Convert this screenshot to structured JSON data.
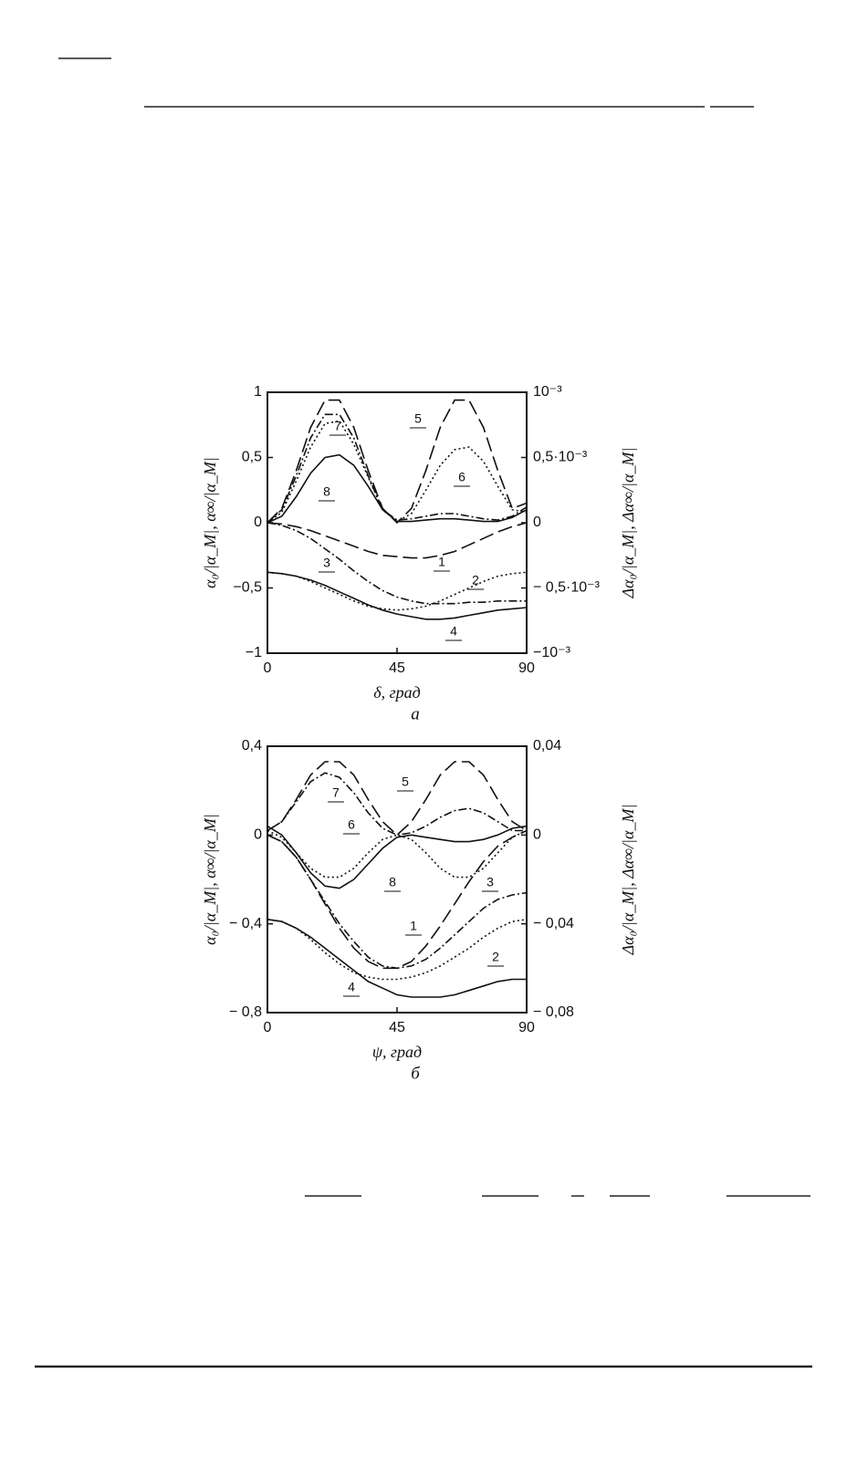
{
  "chart_data": [
    {
      "type": "line",
      "xlabel": "δ, град",
      "caption": "а",
      "ylabel": "α₀/|α_M|, α∞/|α_M|",
      "y2label": "Δα₀/|α_M|, Δα∞/|α_M|",
      "xlim": [
        0,
        90
      ],
      "xticks": [
        0,
        45,
        90
      ],
      "ylim": [
        -1,
        1
      ],
      "yticks": [
        {
          "value": -1,
          "label": "−1"
        },
        {
          "value": -0.5,
          "label": "−0,5"
        },
        0,
        {
          "value": 0.5,
          "label": "0,5"
        },
        1
      ],
      "y2lim": [
        -0.001,
        0.001
      ],
      "y2ticks": [
        {
          "value": -0.001,
          "label": "−10⁻³"
        },
        {
          "value": -0.0005,
          "label": "− 0,5·10⁻³"
        },
        0,
        {
          "value": 0.0005,
          "label": "0,5·10⁻³"
        },
        {
          "value": 0.001,
          "label": "10⁻³"
        }
      ],
      "x": [
        0,
        5,
        10,
        15,
        20,
        25,
        30,
        35,
        40,
        45,
        50,
        55,
        60,
        65,
        70,
        75,
        80,
        85,
        90
      ],
      "series": [
        {
          "name": "1",
          "color": "#111",
          "dash": "long-dash",
          "values": [
            0,
            -0.01,
            -0.03,
            -0.06,
            -0.1,
            -0.14,
            -0.18,
            -0.22,
            -0.25,
            -0.26,
            -0.27,
            -0.27,
            -0.25,
            -0.22,
            -0.17,
            -0.12,
            -0.07,
            -0.03,
            0
          ]
        },
        {
          "name": "2",
          "color": "#111",
          "dash": "dotted",
          "values": [
            -0.38,
            -0.39,
            -0.41,
            -0.45,
            -0.5,
            -0.55,
            -0.6,
            -0.64,
            -0.66,
            -0.67,
            -0.66,
            -0.64,
            -0.6,
            -0.55,
            -0.5,
            -0.45,
            -0.41,
            -0.39,
            -0.38
          ]
        },
        {
          "name": "3",
          "color": "#111",
          "dash": "dash-dot",
          "values": [
            0,
            -0.02,
            -0.06,
            -0.12,
            -0.2,
            -0.28,
            -0.37,
            -0.45,
            -0.52,
            -0.57,
            -0.6,
            -0.62,
            -0.62,
            -0.62,
            -0.61,
            -0.61,
            -0.6,
            -0.6,
            -0.6
          ]
        },
        {
          "name": "4",
          "color": "#111",
          "dash": "solid",
          "values": [
            -0.38,
            -0.39,
            -0.41,
            -0.44,
            -0.48,
            -0.53,
            -0.58,
            -0.63,
            -0.67,
            -0.7,
            -0.72,
            -0.74,
            -0.74,
            -0.73,
            -0.71,
            -0.69,
            -0.67,
            -0.66,
            -0.65
          ]
        },
        {
          "name": "5",
          "color": "#111",
          "dash": "long-dash",
          "values": [
            0,
            0.11,
            0.4,
            0.73,
            0.94,
            0.94,
            0.73,
            0.4,
            0.11,
            0,
            0.11,
            0.4,
            0.73,
            0.94,
            0.94,
            0.73,
            0.4,
            0.11,
            0.15
          ]
        },
        {
          "name": "6",
          "color": "#111",
          "dash": "dotted",
          "values": [
            0,
            0.08,
            0.32,
            0.58,
            0.76,
            0.78,
            0.6,
            0.35,
            0.1,
            0.01,
            0.07,
            0.25,
            0.44,
            0.56,
            0.58,
            0.47,
            0.28,
            0.1,
            0.08
          ]
        },
        {
          "name": "7",
          "color": "#111",
          "dash": "dash-dot",
          "values": [
            0,
            0.1,
            0.36,
            0.65,
            0.83,
            0.83,
            0.65,
            0.36,
            0.1,
            0.02,
            0.03,
            0.05,
            0.07,
            0.07,
            0.05,
            0.03,
            0.02,
            0.05,
            0.12
          ]
        },
        {
          "name": "8",
          "color": "#111",
          "dash": "solid",
          "values": [
            0,
            0.05,
            0.2,
            0.38,
            0.5,
            0.52,
            0.44,
            0.28,
            0.1,
            0.01,
            0.01,
            0.02,
            0.03,
            0.03,
            0.02,
            0.01,
            0.01,
            0.04,
            0.1
          ]
        }
      ]
    },
    {
      "type": "line",
      "xlabel": "ψ, град",
      "caption": "б",
      "ylabel": "α₀/|α_M|, α∞/|α_M|",
      "y2label": "Δα₀/|α_M|, Δα∞/|α_M|",
      "xlim": [
        0,
        90
      ],
      "xticks": [
        0,
        45,
        90
      ],
      "ylim": [
        -0.8,
        0.4
      ],
      "yticks": [
        {
          "value": -0.8,
          "label": "− 0,8"
        },
        {
          "value": -0.4,
          "label": "− 0,4"
        },
        0,
        {
          "value": 0.4,
          "label": "0,4"
        }
      ],
      "y2lim": [
        -0.08,
        0.04
      ],
      "y2ticks": [
        {
          "value": -0.08,
          "label": "− 0,08"
        },
        {
          "value": -0.04,
          "label": "− 0,04"
        },
        0,
        {
          "value": 0.04,
          "label": "0,04"
        }
      ],
      "x": [
        0,
        5,
        10,
        15,
        20,
        25,
        30,
        35,
        40,
        45,
        50,
        55,
        60,
        65,
        70,
        75,
        80,
        85,
        90
      ],
      "series": [
        {
          "name": "1",
          "color": "#111",
          "dash": "long-dash",
          "values": [
            0,
            -0.03,
            -0.1,
            -0.2,
            -0.31,
            -0.42,
            -0.51,
            -0.57,
            -0.6,
            -0.6,
            -0.57,
            -0.5,
            -0.41,
            -0.31,
            -0.21,
            -0.12,
            -0.05,
            -0.01,
            0.02
          ]
        },
        {
          "name": "2",
          "color": "#111",
          "dash": "dotted",
          "values": [
            -0.38,
            -0.39,
            -0.42,
            -0.47,
            -0.53,
            -0.58,
            -0.62,
            -0.64,
            -0.65,
            -0.65,
            -0.64,
            -0.62,
            -0.59,
            -0.55,
            -0.51,
            -0.46,
            -0.42,
            -0.39,
            -0.38
          ]
        },
        {
          "name": "3",
          "color": "#111",
          "dash": "dash-dot",
          "values": [
            0,
            -0.03,
            -0.1,
            -0.2,
            -0.3,
            -0.4,
            -0.48,
            -0.55,
            -0.59,
            -0.6,
            -0.59,
            -0.56,
            -0.51,
            -0.45,
            -0.39,
            -0.33,
            -0.29,
            -0.27,
            -0.26
          ]
        },
        {
          "name": "4",
          "color": "#111",
          "dash": "solid",
          "values": [
            -0.38,
            -0.39,
            -0.42,
            -0.46,
            -0.51,
            -0.56,
            -0.61,
            -0.66,
            -0.69,
            -0.72,
            -0.73,
            -0.73,
            -0.73,
            -0.72,
            -0.7,
            -0.68,
            -0.66,
            -0.65,
            -0.65
          ]
        },
        {
          "name": "5",
          "color": "#111",
          "dash": "long-dash",
          "values": [
            0.02,
            0.06,
            0.16,
            0.27,
            0.33,
            0.33,
            0.27,
            0.16,
            0.06,
            0,
            0.06,
            0.16,
            0.27,
            0.33,
            0.33,
            0.27,
            0.16,
            0.06,
            0.02
          ]
        },
        {
          "name": "6",
          "color": "#111",
          "dash": "dotted",
          "values": [
            0.02,
            -0.01,
            -0.08,
            -0.15,
            -0.19,
            -0.19,
            -0.15,
            -0.08,
            -0.02,
            0,
            -0.02,
            -0.08,
            -0.15,
            -0.19,
            -0.19,
            -0.15,
            -0.08,
            -0.01,
            0.02
          ]
        },
        {
          "name": "7",
          "color": "#111",
          "dash": "dash-dot",
          "values": [
            0.02,
            0.06,
            0.15,
            0.24,
            0.28,
            0.26,
            0.19,
            0.1,
            0.03,
            0,
            0.01,
            0.04,
            0.08,
            0.11,
            0.12,
            0.1,
            0.06,
            0.02,
            0.02
          ]
        },
        {
          "name": "8",
          "color": "#111",
          "dash": "solid",
          "values": [
            0.04,
            0,
            -0.08,
            -0.17,
            -0.23,
            -0.24,
            -0.2,
            -0.13,
            -0.06,
            -0.01,
            0,
            -0.01,
            -0.02,
            -0.03,
            -0.03,
            -0.02,
            0,
            0.03,
            0.04
          ]
        }
      ]
    }
  ]
}
